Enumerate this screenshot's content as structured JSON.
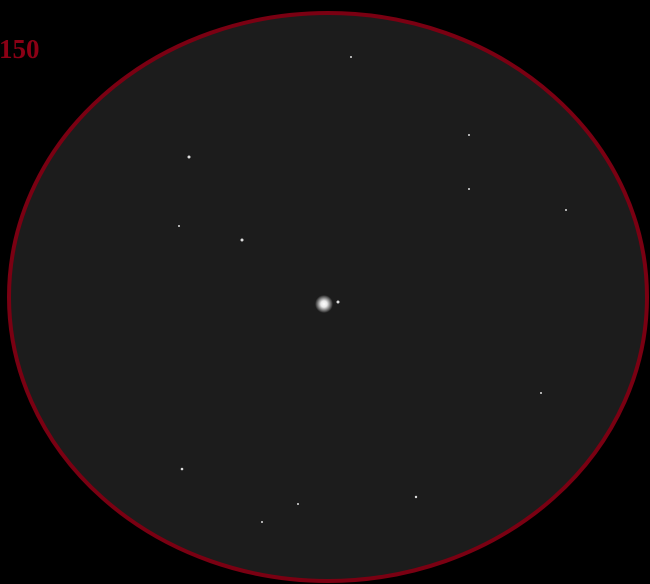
{
  "label": "150"
}
